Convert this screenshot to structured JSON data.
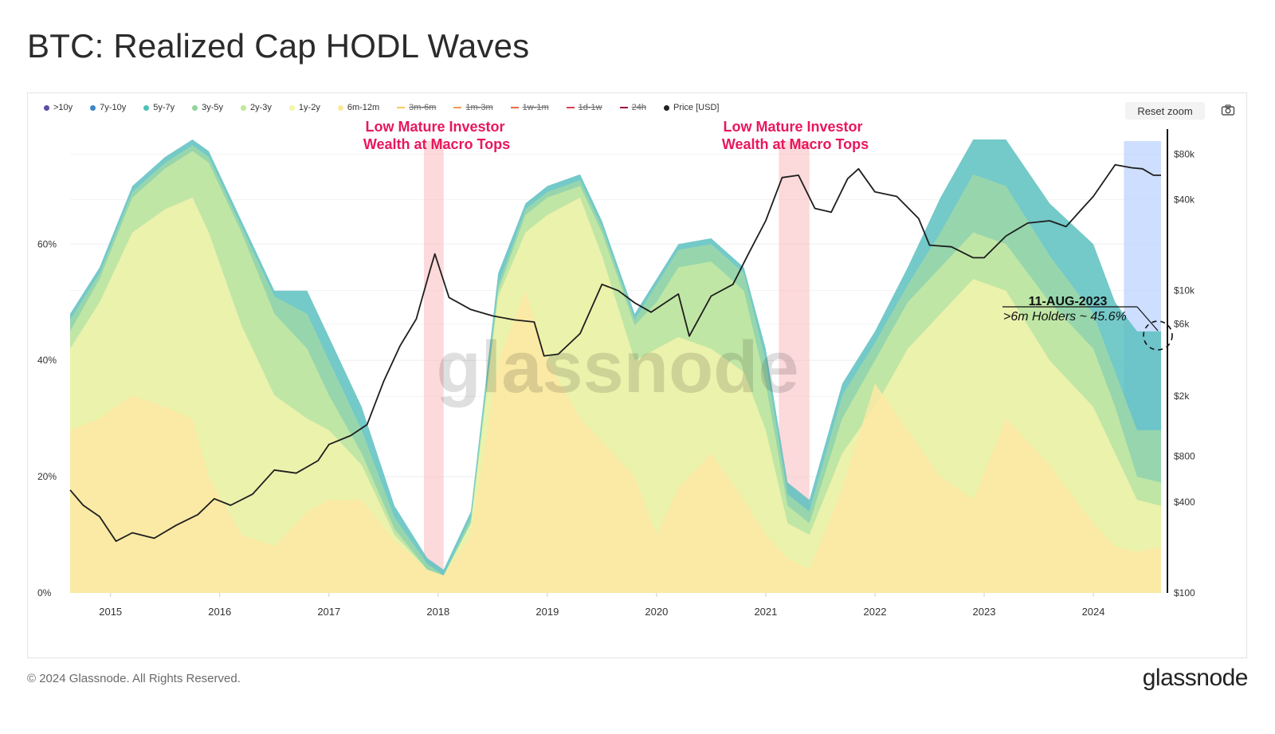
{
  "page": {
    "title": "BTC: Realized Cap HODL Waves",
    "copyright": "© 2024 Glassnode. All Rights Reserved.",
    "logo": "glassnode",
    "reset_zoom": "Reset zoom",
    "camera_icon": "camera-icon"
  },
  "legend": [
    {
      "label": ">10y",
      "color": "#5a4fa8",
      "enabled": true
    },
    {
      "label": "7y-10y",
      "color": "#3c86c7",
      "enabled": true
    },
    {
      "label": "5y-7y",
      "color": "#4cc1b8",
      "enabled": true
    },
    {
      "label": "3y-5y",
      "color": "#8fd49a",
      "enabled": true
    },
    {
      "label": "2y-3y",
      "color": "#bfe89c",
      "enabled": true
    },
    {
      "label": "1y-2y",
      "color": "#f4f6a6",
      "enabled": true
    },
    {
      "label": "6m-12m",
      "color": "#fde89a",
      "enabled": true
    },
    {
      "label": "3m-6m",
      "color": "#fbc85e",
      "enabled": false
    },
    {
      "label": "1m-3m",
      "color": "#f89a52",
      "enabled": false
    },
    {
      "label": "1w-1m",
      "color": "#ef6a47",
      "enabled": false
    },
    {
      "label": "1d-1w",
      "color": "#d9404e",
      "enabled": false
    },
    {
      "label": "24h",
      "color": "#9e0f3e",
      "enabled": false
    },
    {
      "label": "Price [USD]",
      "color": "#222222",
      "enabled": true
    }
  ],
  "annotations": {
    "top1_line1": "Low Mature Investor",
    "top1_line2": "Wealth at Macro Tops",
    "top2_line1": "Low Mature Investor",
    "top2_line2": "Wealth at Macro Tops",
    "callout_date": "11-AUG-2023",
    "callout_text": ">6m Holders ~ 45.6%",
    "watermark": "glassnode",
    "highlight_color": "#f9b9bd",
    "recent_highlight_color": "#bcd3ff",
    "accent_color": "#e8175d"
  },
  "chart_data": {
    "type": "area",
    "title": "BTC: Realized Cap HODL Waves",
    "x_ticks": [
      "2015",
      "2016",
      "2017",
      "2018",
      "2019",
      "2020",
      "2021",
      "2022",
      "2023",
      "2024"
    ],
    "x_range": [
      2014.63,
      2024.62
    ],
    "y_left_ticks": [
      "0%",
      "20%",
      "40%",
      "60%"
    ],
    "y_left_range": [
      0,
      78
    ],
    "y_right_ticks": [
      "$100",
      "$400",
      "$800",
      "$2k",
      "$6k",
      "$10k",
      "$40k",
      "$80k"
    ],
    "y_right_ticks_values": [
      100,
      400,
      800,
      2000,
      6000,
      10000,
      40000,
      80000
    ],
    "y_right_scale": "log",
    "highlights": [
      [
        2017.87,
        2018.05
      ],
      [
        2021.12,
        2021.4
      ],
      [
        2024.28,
        2024.62
      ]
    ],
    "x": [
      2014.63,
      2014.9,
      2015.2,
      2015.5,
      2015.75,
      2015.9,
      2016.2,
      2016.5,
      2016.8,
      2017.0,
      2017.3,
      2017.6,
      2017.9,
      2018.05,
      2018.3,
      2018.55,
      2018.8,
      2019.0,
      2019.3,
      2019.5,
      2019.8,
      2020.0,
      2020.2,
      2020.5,
      2020.8,
      2021.0,
      2021.2,
      2021.4,
      2021.7,
      2022.0,
      2022.3,
      2022.6,
      2022.9,
      2023.2,
      2023.6,
      2024.0,
      2024.2,
      2024.4,
      2024.62
    ],
    "series": [
      {
        "name": "5y-7y",
        "values": [
          48,
          56,
          70,
          75,
          78,
          76,
          64,
          52,
          52,
          44,
          32,
          15,
          6,
          4,
          14,
          55,
          67,
          70,
          72,
          64,
          48,
          54,
          60,
          61,
          56,
          42,
          19,
          16,
          36,
          45,
          56,
          68,
          78,
          78,
          67,
          60,
          50,
          45,
          45
        ]
      },
      {
        "name": "3y-5y",
        "values": [
          47,
          55,
          69,
          74,
          77,
          75,
          63,
          51,
          48,
          40,
          28,
          13,
          5,
          3,
          13,
          53,
          66,
          69,
          71,
          63,
          47,
          53,
          59,
          60,
          55,
          40,
          17,
          14,
          34,
          43,
          53,
          62,
          72,
          70,
          58,
          48,
          38,
          28,
          28
        ]
      },
      {
        "name": "2y-3y",
        "values": [
          45,
          54,
          68,
          73,
          76,
          74,
          62,
          48,
          42,
          34,
          24,
          11,
          4,
          3,
          12,
          52,
          65,
          68,
          70,
          62,
          46,
          50,
          56,
          57,
          52,
          36,
          15,
          12,
          30,
          40,
          50,
          56,
          62,
          60,
          50,
          42,
          32,
          20,
          19
        ]
      },
      {
        "name": "1y-2y",
        "values": [
          42,
          50,
          62,
          66,
          68,
          62,
          46,
          34,
          30,
          28,
          22,
          10,
          4,
          3,
          12,
          51,
          62,
          65,
          68,
          58,
          40,
          42,
          44,
          42,
          38,
          28,
          12,
          10,
          24,
          32,
          42,
          48,
          54,
          52,
          40,
          32,
          24,
          16,
          15
        ]
      },
      {
        "name": "6m-12m",
        "values": [
          28,
          30,
          34,
          32,
          30,
          20,
          10,
          8,
          14,
          16,
          16,
          9,
          4,
          3,
          10,
          40,
          52,
          40,
          30,
          26,
          20,
          10,
          18,
          24,
          16,
          10,
          6,
          4,
          18,
          36,
          28,
          20,
          16,
          30,
          22,
          12,
          8,
          7,
          8
        ]
      }
    ],
    "price_x": [
      2014.63,
      2014.75,
      2014.9,
      2015.05,
      2015.2,
      2015.4,
      2015.6,
      2015.8,
      2015.95,
      2016.1,
      2016.3,
      2016.5,
      2016.7,
      2016.9,
      2017.0,
      2017.2,
      2017.35,
      2017.5,
      2017.65,
      2017.8,
      2017.93,
      2017.97,
      2018.1,
      2018.3,
      2018.5,
      2018.7,
      2018.88,
      2018.97,
      2019.1,
      2019.3,
      2019.5,
      2019.65,
      2019.8,
      2019.95,
      2020.2,
      2020.3,
      2020.5,
      2020.7,
      2020.85,
      2021.0,
      2021.15,
      2021.3,
      2021.45,
      2021.6,
      2021.75,
      2021.85,
      2022.0,
      2022.2,
      2022.4,
      2022.5,
      2022.7,
      2022.9,
      2023.0,
      2023.2,
      2023.4,
      2023.6,
      2023.75,
      2023.9,
      2024.0,
      2024.2,
      2024.35,
      2024.45,
      2024.55,
      2024.62
    ],
    "price_values": [
      480,
      380,
      320,
      220,
      250,
      230,
      280,
      330,
      420,
      380,
      450,
      650,
      620,
      750,
      960,
      1100,
      1300,
      2500,
      4300,
      6500,
      14000,
      17500,
      9000,
      7500,
      6800,
      6400,
      6200,
      3700,
      3800,
      5200,
      11000,
      10000,
      8300,
      7200,
      9500,
      5000,
      9200,
      11000,
      18000,
      29000,
      56000,
      58000,
      35000,
      33000,
      55000,
      64000,
      45000,
      42000,
      30000,
      20000,
      19500,
      16500,
      16500,
      23000,
      28000,
      29000,
      26500,
      35000,
      42000,
      68000,
      65000,
      64000,
      58000,
      58000
    ]
  }
}
